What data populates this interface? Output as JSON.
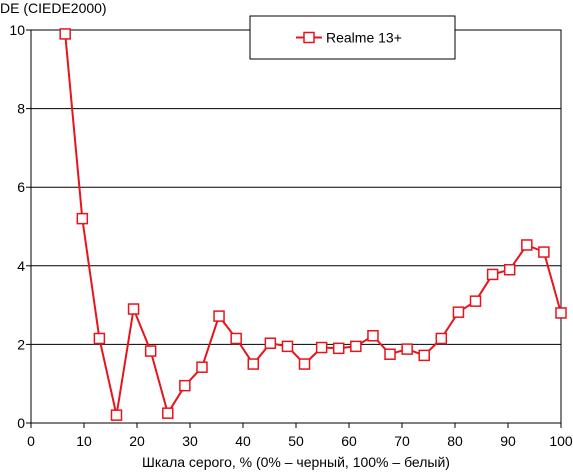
{
  "chart_data": {
    "type": "line",
    "title": "",
    "ylabel": "DE (CIEDE2000)",
    "xlabel": "Шкала серого, % (0% – черный, 100% – белый)",
    "xlim": [
      0,
      100
    ],
    "ylim": [
      0,
      10
    ],
    "x_ticks": [
      "0",
      "10",
      "20",
      "30",
      "40",
      "50",
      "60",
      "70",
      "80",
      "90",
      "100"
    ],
    "y_ticks": [
      "0",
      "2",
      "4",
      "6",
      "8",
      "10"
    ],
    "grid": "horizontal",
    "legend_position": "top-center",
    "series": [
      {
        "name": "Realme 13+",
        "color": "#e8141b",
        "marker": "open-square",
        "x": [
          6.45,
          9.68,
          12.9,
          16.13,
          19.35,
          22.58,
          25.81,
          29.03,
          32.26,
          35.48,
          38.71,
          41.94,
          45.16,
          48.39,
          51.61,
          54.84,
          58.06,
          61.29,
          64.52,
          67.74,
          70.97,
          74.19,
          77.42,
          80.65,
          83.87,
          87.1,
          90.32,
          93.55,
          96.77,
          100
        ],
        "y": [
          9.9,
          5.2,
          2.15,
          0.2,
          2.9,
          1.83,
          0.25,
          0.95,
          1.42,
          2.72,
          2.15,
          1.5,
          2.03,
          1.95,
          1.5,
          1.92,
          1.9,
          1.95,
          2.22,
          1.75,
          1.88,
          1.72,
          2.15,
          2.82,
          3.1,
          3.78,
          3.9,
          4.53,
          4.35,
          2.8
        ]
      }
    ]
  }
}
